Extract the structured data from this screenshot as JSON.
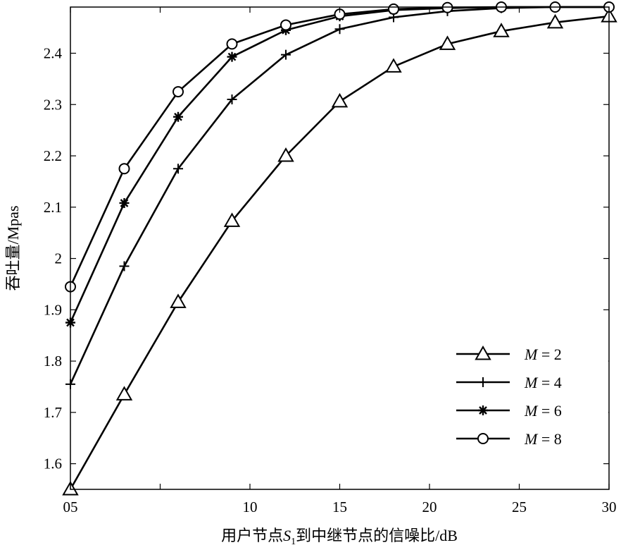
{
  "chart_data": {
    "type": "line",
    "xlabel_parts": [
      "用户节点",
      "S",
      "1",
      "到中继节点的信噪比/dB"
    ],
    "ylabel": "吞吐量/Mpas",
    "xlim": [
      0,
      30
    ],
    "ylim": [
      1.55,
      2.49
    ],
    "x_ticks": [
      0,
      5,
      10,
      15,
      20,
      25,
      30
    ],
    "x_tick_labels": [
      "05",
      "",
      "10",
      "15",
      "20",
      "25",
      "30"
    ],
    "y_ticks": [
      1.6,
      1.7,
      1.8,
      1.9,
      2.0,
      2.1,
      2.2,
      2.3,
      2.4
    ],
    "y_tick_labels": [
      "1.6",
      "1.7",
      "1.8",
      "1.9",
      "2",
      "2.1",
      "2.2",
      "2.3",
      "2.4"
    ],
    "x": [
      0,
      3,
      6,
      9,
      12,
      15,
      18,
      21,
      24,
      27,
      30
    ],
    "series": [
      {
        "name": "M = 2",
        "marker": "triangle",
        "values": [
          1.55,
          1.735,
          1.915,
          2.073,
          2.2,
          2.306,
          2.374,
          2.418,
          2.443,
          2.46,
          2.472
        ]
      },
      {
        "name": "M = 4",
        "marker": "plus",
        "values": [
          1.755,
          1.985,
          2.175,
          2.31,
          2.397,
          2.447,
          2.47,
          2.482,
          2.488,
          2.49,
          2.49
        ]
      },
      {
        "name": "M = 6",
        "marker": "asterisk",
        "values": [
          1.875,
          2.108,
          2.276,
          2.393,
          2.445,
          2.472,
          2.484,
          2.488,
          2.49,
          2.49,
          2.49
        ]
      },
      {
        "name": "M = 8",
        "marker": "circle",
        "values": [
          1.945,
          2.175,
          2.325,
          2.418,
          2.455,
          2.476,
          2.486,
          2.489,
          2.49,
          2.49,
          2.49
        ]
      }
    ],
    "legend_position": "bottom-right",
    "grid": false
  }
}
